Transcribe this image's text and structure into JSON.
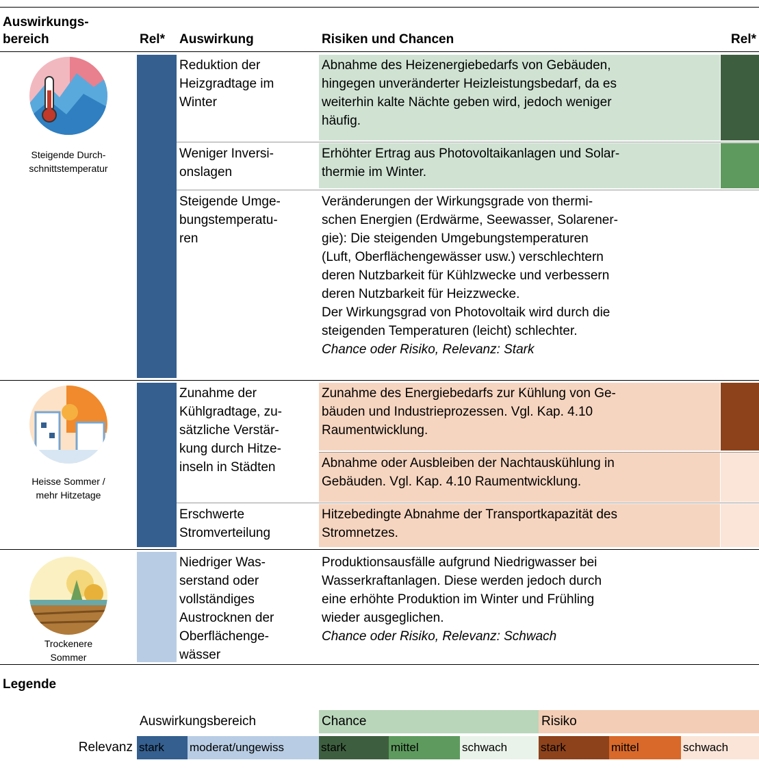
{
  "header": {
    "area": [
      "Auswirkungs-",
      "bereich"
    ],
    "rel": "Rel*",
    "impact": "Auswirkung",
    "risks": "Risiken und Chancen",
    "rel2": "Rel*"
  },
  "groups": [
    {
      "label": [
        "Steigende Durch-",
        "schnittstemperatur"
      ],
      "rows": [
        {
          "impact": [
            "Reduktion der",
            "Heizgradtage im",
            "Winter"
          ],
          "risks": [
            {
              "text": [
                "Abnahme des Heizenergiebedarfs von Gebäuden,",
                "hingegen unveränderter Heizleistungsbedarf, da es",
                "weiterhin kalte Nächte geben wird, jedoch weniger",
                "häufig."
              ]
            }
          ]
        },
        {
          "impact": [
            "Weniger Inversi-",
            "onslagen"
          ],
          "risks": [
            {
              "text": [
                "Erhöhter Ertrag aus Photovoltaikanlagen und Solar-",
                "thermie im Winter."
              ]
            }
          ]
        },
        {
          "impact": [
            "Steigende Umge-",
            "bungstemperatu-",
            "ren"
          ],
          "risks": [
            {
              "text": [
                "Veränderungen der Wirkungsgrade von thermi-",
                "schen Energien (Erdwärme, Seewasser, Solarener-",
                "gie): Die steigenden Umgebungstemperaturen",
                "(Luft, Oberflächengewässer usw.) verschlechtern",
                "deren Nutzbarkeit für Kühlzwecke und verbessern",
                "deren Nutzbarkeit für Heizzwecke.",
                "Der Wirkungsgrad von Photovoltaik wird durch die",
                "steigenden Temperaturen (leicht) schlechter."
              ],
              "note": "Chance oder Risiko, Relevanz: Stark"
            }
          ]
        }
      ]
    },
    {
      "label": [
        "Heisse Sommer /",
        "mehr Hitzetage"
      ],
      "rows": [
        {
          "impact": [
            "Zunahme der",
            "Kühlgradtage, zu-",
            "sätzliche Verstär-",
            "kung durch Hitze-",
            "inseln in Städten"
          ],
          "risks": [
            {
              "text": [
                "Zunahme des Energiebedarfs zur Kühlung von Ge-",
                "bäuden und Industrieprozessen. Vgl. Kap. 4.10",
                "Raumentwicklung."
              ]
            },
            {
              "text": [
                "Abnahme oder Ausbleiben der Nachtauskühlung in",
                "Gebäuden. Vgl. Kap. 4.10 Raumentwicklung."
              ]
            }
          ]
        },
        {
          "impact": [
            "Erschwerte",
            "Stromverteilung"
          ],
          "risks": [
            {
              "text": [
                "Hitzebedingte Abnahme der Transportkapazität des",
                "Stromnetzes."
              ]
            }
          ]
        }
      ]
    },
    {
      "label": [
        "Trockenere",
        "Sommer"
      ],
      "rows": [
        {
          "impact": [
            "Niedriger Was-",
            "serstand oder",
            "vollständiges",
            "Austrocknen der",
            "Oberflächenge-",
            "wässer"
          ],
          "risks": [
            {
              "text": [
                "Produktionsausfälle aufgrund Niedrigwasser bei",
                "Wasserkraftanlagen. Diese werden jedoch durch",
                "eine erhöhte Produktion im Winter und Frühling",
                "wieder ausgeglichen."
              ],
              "note": "Chance oder Risiko, Relevanz: Schwach"
            }
          ]
        }
      ]
    }
  ],
  "legend": {
    "title": "Legende",
    "area": "Auswirkungsbereich",
    "chance": "Chance",
    "risk": "Risiko",
    "relevance": "Relevanz",
    "swatches": [
      "stark",
      "moderat/ungewiss",
      "stark",
      "mittel",
      "schwach",
      "stark",
      "mittel",
      "schwach"
    ]
  }
}
